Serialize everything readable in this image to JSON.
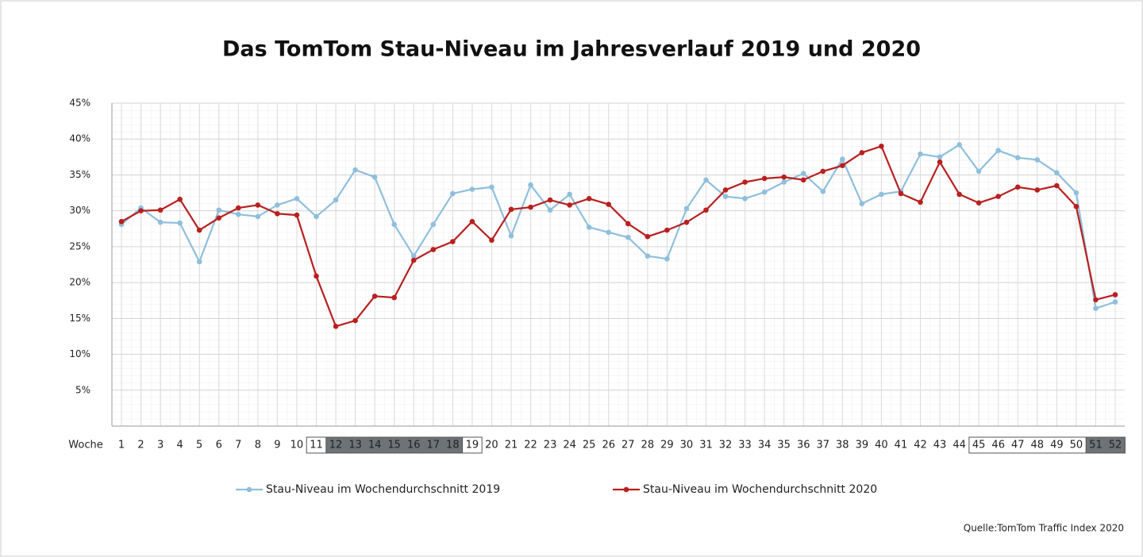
{
  "chart_data": {
    "type": "line",
    "title": "Das TomTom Stau-Niveau im Jahresverlauf 2019 und 2020",
    "x_label": "Woche",
    "source": "Quelle:TomTom Traffic Index 2020",
    "categories": [
      "1",
      "2",
      "3",
      "4",
      "5",
      "6",
      "7",
      "8",
      "9",
      "10",
      "11",
      "12",
      "13",
      "14",
      "15",
      "16",
      "17",
      "18",
      "19",
      "20",
      "21",
      "22",
      "23",
      "24",
      "25",
      "26",
      "27",
      "28",
      "29",
      "30",
      "31",
      "32",
      "33",
      "34",
      "35",
      "36",
      "37",
      "38",
      "39",
      "40",
      "41",
      "42",
      "43",
      "44",
      "45",
      "46",
      "47",
      "48",
      "49",
      "50",
      "51",
      "52"
    ],
    "series": [
      {
        "name": "Stau-Niveau im Wochendurchschnitt 2019",
        "color": "#8fbfdc",
        "values": [
          28.1,
          30.4,
          28.4,
          28.3,
          22.9,
          30.1,
          29.5,
          29.2,
          30.8,
          31.7,
          29.2,
          31.5,
          35.7,
          34.7,
          28.1,
          23.7,
          28.1,
          32.4,
          33.0,
          33.3,
          26.5,
          33.6,
          30.1,
          32.3,
          27.7,
          27.0,
          26.3,
          23.7,
          23.3,
          30.3,
          34.3,
          32.0,
          31.7,
          32.6,
          34.0,
          35.2,
          32.7,
          37.2,
          31.0,
          32.3,
          32.7,
          37.9,
          37.5,
          39.2,
          35.5,
          38.4,
          37.4,
          37.1,
          35.3,
          32.5,
          16.4,
          17.3
        ]
      },
      {
        "name": "Stau-Niveau im Wochendurchschnitt 2020",
        "color": "#b8201f",
        "values": [
          28.5,
          30.0,
          30.1,
          31.6,
          27.3,
          29.0,
          30.4,
          30.8,
          29.6,
          29.4,
          20.9,
          13.9,
          14.7,
          18.1,
          17.9,
          23.1,
          24.6,
          25.7,
          28.5,
          25.9,
          30.2,
          30.5,
          31.5,
          30.8,
          31.7,
          30.9,
          28.2,
          26.4,
          27.3,
          28.4,
          30.1,
          32.9,
          34.0,
          34.5,
          34.7,
          34.3,
          35.5,
          36.3,
          38.1,
          39.0,
          32.4,
          31.2,
          36.8,
          32.3,
          31.1,
          32.0,
          33.3,
          32.9,
          33.5,
          30.6,
          17.6,
          18.3
        ]
      }
    ],
    "ylim": [
      0,
      45
    ],
    "yticks": [
      {
        "value": 5,
        "label": "5%"
      },
      {
        "value": 10,
        "label": "10%"
      },
      {
        "value": 15,
        "label": "15%"
      },
      {
        "value": 20,
        "label": "20%"
      },
      {
        "value": 25,
        "label": "25%"
      },
      {
        "value": 30,
        "label": "30%"
      },
      {
        "value": 35,
        "label": "35%"
      },
      {
        "value": 40,
        "label": "40%"
      },
      {
        "value": 45,
        "label": "45%"
      }
    ],
    "grid": true
  }
}
